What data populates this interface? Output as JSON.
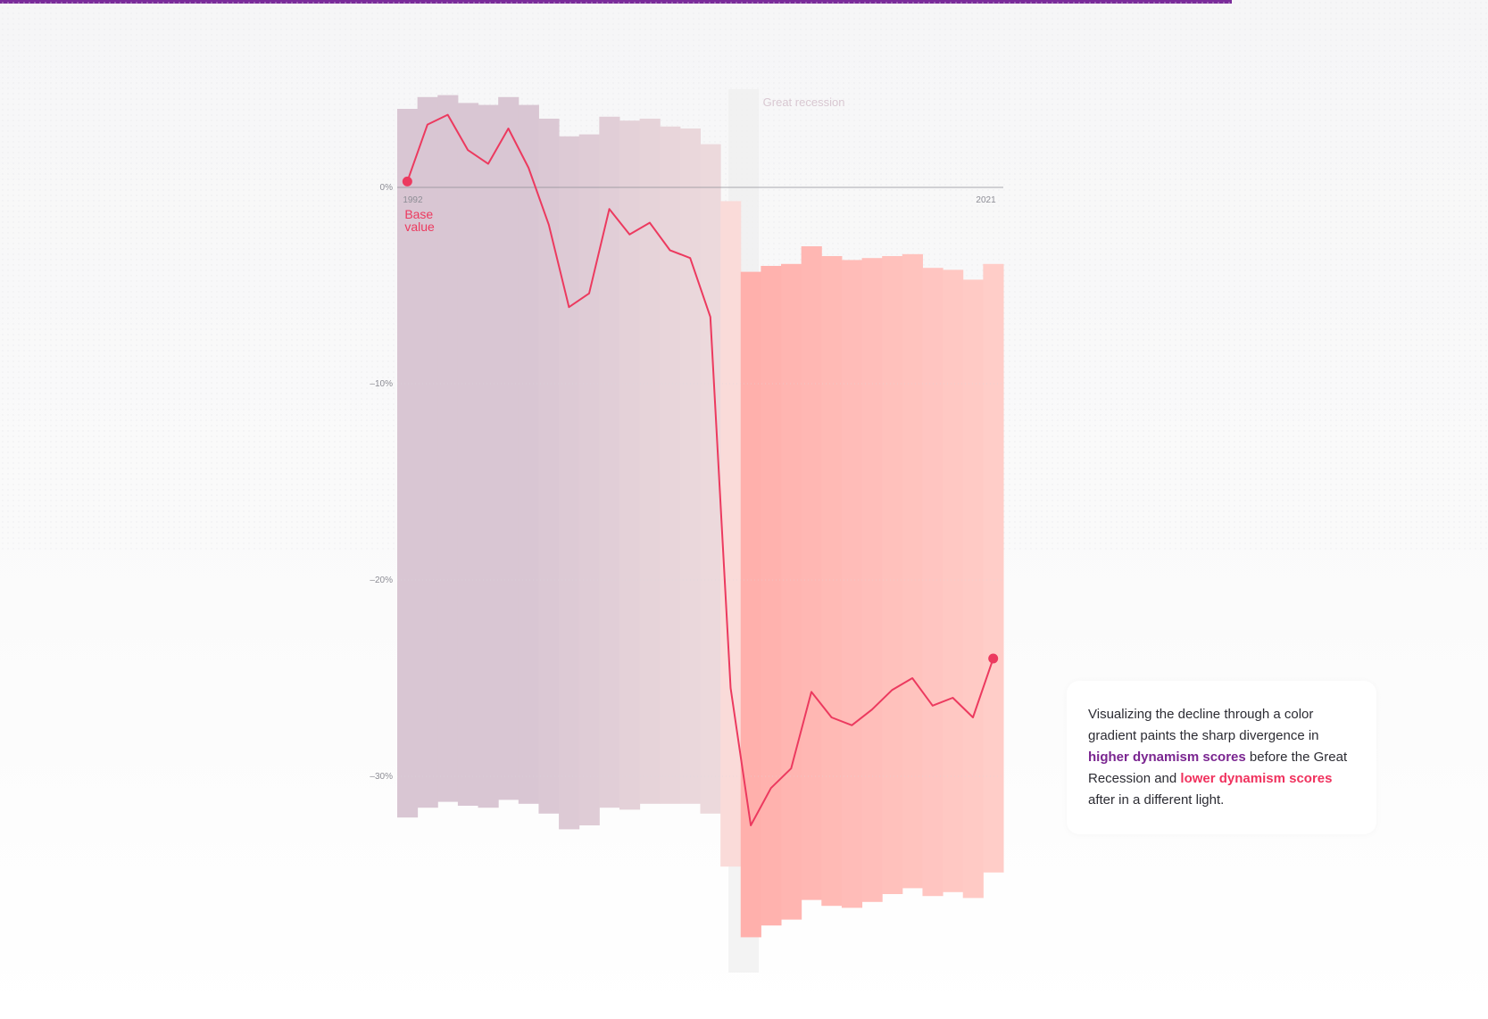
{
  "colors": {
    "top_rule": "#7a2b9a",
    "line": "#ec3a5f",
    "high_label": "#7a2590",
    "low_label": "#f0325e",
    "pre_band": "#d9c6d3",
    "post_band": "#ffb6b2",
    "recession_band": "#efefef"
  },
  "chart_data": {
    "type": "line",
    "x": [
      1992,
      1993,
      1994,
      1995,
      1996,
      1997,
      1998,
      1999,
      2000,
      2001,
      2002,
      2003,
      2004,
      2005,
      2006,
      2007,
      2008,
      2009,
      2010,
      2011,
      2012,
      2013,
      2014,
      2015,
      2016,
      2017,
      2018,
      2019,
      2020,
      2021
    ],
    "series": [
      {
        "values": [
          0.3,
          3.2,
          3.7,
          1.9,
          1.2,
          3.0,
          1.0,
          -1.9,
          -6.1,
          -5.4,
          -1.1,
          -2.4,
          -1.8,
          -3.2,
          -3.6,
          -6.6,
          -25.5,
          -32.5,
          -30.6,
          -29.6,
          -25.7,
          -27.0,
          -27.4,
          -26.6,
          -25.6,
          -25.0,
          -26.4,
          -26.0,
          -27.0,
          -24.0
        ]
      }
    ],
    "bands": {
      "upper": [
        4.0,
        4.6,
        4.7,
        4.3,
        4.2,
        4.6,
        4.2,
        3.5,
        2.6,
        2.7,
        3.6,
        3.4,
        3.5,
        3.1,
        3.0,
        2.2,
        -0.7,
        -4.3,
        -4.0,
        -3.9,
        -3.0,
        -3.5,
        -3.7,
        -3.6,
        -3.5,
        -3.4,
        -4.1,
        -4.2,
        -4.7,
        -3.9
      ],
      "lower": [
        -32.1,
        -31.6,
        -31.3,
        -31.5,
        -31.6,
        -31.2,
        -31.4,
        -31.9,
        -32.7,
        -32.5,
        -31.6,
        -31.7,
        -31.4,
        -31.4,
        -31.4,
        -31.9,
        -34.6,
        -38.2,
        -37.6,
        -37.3,
        -36.3,
        -36.6,
        -36.7,
        -36.4,
        -36.0,
        -35.7,
        -36.1,
        -35.9,
        -36.2,
        -34.9
      ]
    },
    "ylim": [
      -40,
      6
    ],
    "yticks": [
      0,
      -10,
      -20,
      -30
    ],
    "ytick_labels": [
      "0%",
      "–10%",
      "–20%",
      "–30%"
    ],
    "x_start_label": "1992",
    "x_end_label": "2021",
    "base_label": [
      "Base",
      "value"
    ],
    "annotation": {
      "label": "Great recession",
      "x_start": 2008,
      "x_end": 2009
    },
    "grid": true
  },
  "note": {
    "part1": "Visualizing the decline through a color gradient paints the sharp divergence in ",
    "highlight_high": "higher dynamism scores",
    "part2": " before the Great Recession and ",
    "highlight_low": "lower dynamism scores",
    "part3": " after in a different light."
  }
}
